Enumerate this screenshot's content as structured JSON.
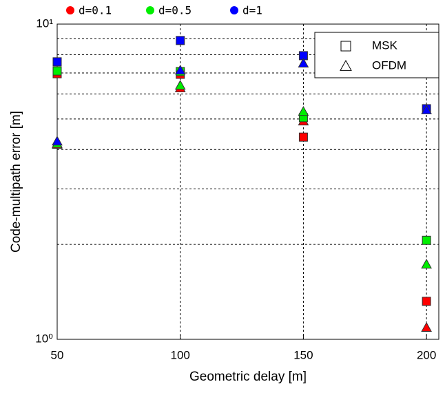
{
  "chart_data": {
    "type": "scatter",
    "x_label": "Geometric delay [m]",
    "y_label": "Code-multipath error [m]",
    "x": [
      50,
      100,
      150,
      200
    ],
    "xlim": [
      50,
      205
    ],
    "xticks": [
      50,
      100,
      150,
      200
    ],
    "ylim": [
      1,
      10
    ],
    "log_y": true,
    "yticks": [
      {
        "value": 1,
        "label": "10⁰"
      },
      {
        "value": 10,
        "label": "10¹"
      }
    ],
    "y_minor_grid": [
      2,
      3,
      4,
      5,
      6,
      7,
      8,
      9
    ],
    "grid": true,
    "color_legend": [
      {
        "name": "d=0.1",
        "color": "#ff0000"
      },
      {
        "name": "d=0.5",
        "color": "#00ee00"
      },
      {
        "name": "d=1",
        "color": "#0000ff"
      }
    ],
    "marker_legend": [
      {
        "name": "MSK",
        "marker": "square"
      },
      {
        "name": "OFDM",
        "marker": "triangle"
      }
    ],
    "series": [
      {
        "color_index": 0,
        "marker_index": 0,
        "values": [
          6.96,
          6.93,
          4.38,
          1.32
        ]
      },
      {
        "color_index": 0,
        "marker_index": 1,
        "values": [
          4.15,
          6.27,
          4.92,
          1.09
        ]
      },
      {
        "color_index": 1,
        "marker_index": 0,
        "values": [
          7.1,
          7.07,
          5.05,
          2.06
        ]
      },
      {
        "color_index": 1,
        "marker_index": 1,
        "values": [
          4.18,
          6.39,
          5.28,
          1.73
        ]
      },
      {
        "color_index": 2,
        "marker_index": 0,
        "values": [
          7.59,
          8.87,
          7.94,
          5.39
        ]
      },
      {
        "color_index": 2,
        "marker_index": 1,
        "values": [
          4.25,
          7.14,
          7.51,
          5.34
        ]
      }
    ]
  }
}
